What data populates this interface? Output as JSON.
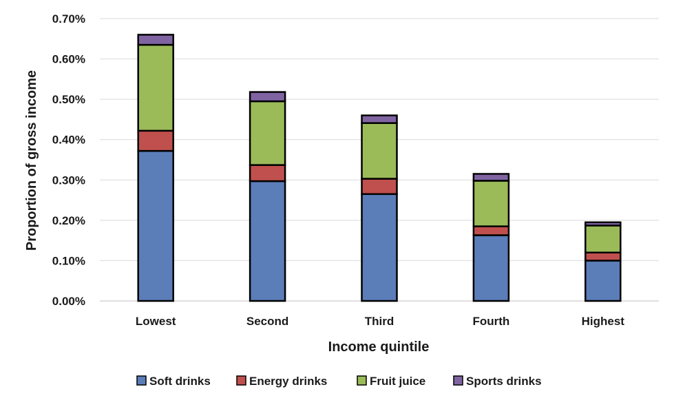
{
  "chart_data": {
    "type": "bar",
    "stacked": true,
    "title": "",
    "xlabel": "Income quintile",
    "ylabel": "Proportion of gross income",
    "categories": [
      "Lowest",
      "Second",
      "Third",
      "Fourth",
      "Highest"
    ],
    "series": [
      {
        "name": "Soft drinks",
        "color": "#5b7db8",
        "values": [
          0.372,
          0.297,
          0.265,
          0.163,
          0.1
        ]
      },
      {
        "name": "Energy drinks",
        "color": "#c0504d",
        "values": [
          0.05,
          0.04,
          0.038,
          0.022,
          0.02
        ]
      },
      {
        "name": "Fruit juice",
        "color": "#9bbb59",
        "values": [
          0.213,
          0.158,
          0.138,
          0.113,
          0.067
        ]
      },
      {
        "name": "Sports drinks",
        "color": "#8064a2",
        "values": [
          0.025,
          0.023,
          0.019,
          0.017,
          0.008
        ]
      }
    ],
    "ylim": [
      0,
      0.7
    ],
    "yticks": [
      "0.00%",
      "0.10%",
      "0.20%",
      "0.30%",
      "0.40%",
      "0.50%",
      "0.60%",
      "0.70%"
    ],
    "ytick_values": [
      0,
      0.1,
      0.2,
      0.3,
      0.4,
      0.5,
      0.6,
      0.7
    ],
    "grid": true,
    "legend_position": "bottom"
  }
}
